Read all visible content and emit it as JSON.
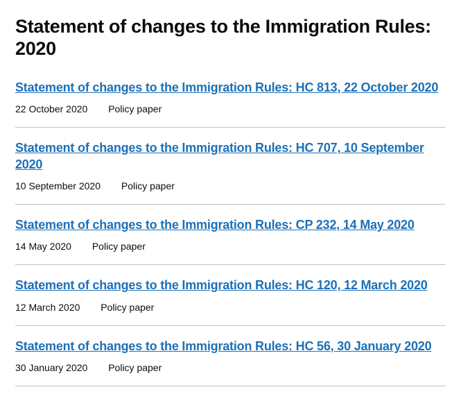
{
  "page": {
    "title": "Statement of changes to the Immigration Rules: 2020"
  },
  "colors": {
    "link": "#1d70b8",
    "text": "#0b0c0c",
    "divider": "#bfc1c3",
    "background": "#ffffff"
  },
  "documents": [
    {
      "title": "Statement of changes to the Immigration Rules: HC 813, 22 October 2020",
      "date": "22 October 2020",
      "type": "Policy paper"
    },
    {
      "title": "Statement of changes to the Immigration Rules: HC 707, 10 September 2020",
      "date": "10 September 2020",
      "type": "Policy paper"
    },
    {
      "title": "Statement of changes to the Immigration Rules: CP 232, 14 May 2020",
      "date": "14 May 2020",
      "type": "Policy paper"
    },
    {
      "title": "Statement of changes to the Immigration Rules: HC 120, 12 March 2020",
      "date": "12 March 2020",
      "type": "Policy paper"
    },
    {
      "title": "Statement of changes to the Immigration Rules: HC 56, 30 January 2020",
      "date": "30 January 2020",
      "type": "Policy paper"
    }
  ]
}
